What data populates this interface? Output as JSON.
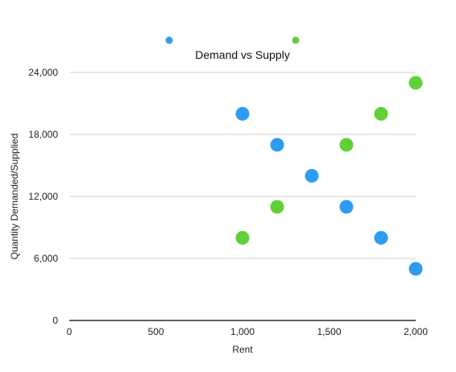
{
  "chart_data": {
    "type": "scatter",
    "title": "Demand vs Supply",
    "xlabel": "Rent",
    "ylabel": "Quantity Demanded/Supplied",
    "xlim": [
      0,
      2000
    ],
    "ylim": [
      0,
      24000
    ],
    "x_ticks": [
      0,
      500,
      1000,
      1500,
      2000
    ],
    "x_tick_labels": [
      "0",
      "500",
      "1,000",
      "1,500",
      "2,000"
    ],
    "y_ticks": [
      0,
      6000,
      12000,
      18000,
      24000
    ],
    "y_tick_labels": [
      "0",
      "6,000",
      "12,000",
      "18,000",
      "24,000"
    ],
    "grid": "horizontal",
    "legend_position": "top",
    "series": [
      {
        "color": "#2d9bf0",
        "points": [
          {
            "x": 1000,
            "y": 20000
          },
          {
            "x": 1200,
            "y": 17000
          },
          {
            "x": 1400,
            "y": 14000
          },
          {
            "x": 1600,
            "y": 11000
          },
          {
            "x": 1800,
            "y": 8000
          },
          {
            "x": 2000,
            "y": 5000
          }
        ]
      },
      {
        "color": "#5fd136",
        "points": [
          {
            "x": 1000,
            "y": 8000
          },
          {
            "x": 1200,
            "y": 11000
          },
          {
            "x": 1600,
            "y": 17000
          },
          {
            "x": 1800,
            "y": 20000
          },
          {
            "x": 2000,
            "y": 23000
          }
        ]
      }
    ]
  }
}
